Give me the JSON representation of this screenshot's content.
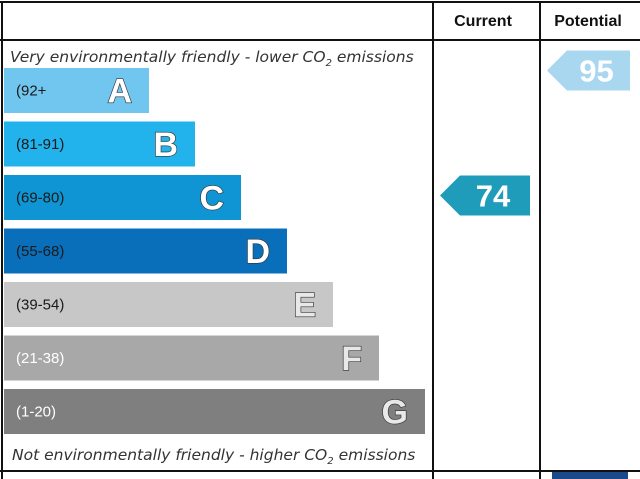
{
  "header": {
    "current_label": "Current",
    "potential_label": "Potential"
  },
  "notes": {
    "top_prefix": "Very environmentally friendly - lower CO",
    "top_sub": "2",
    "top_suffix": " emissions",
    "bottom_prefix": "Not environmentally friendly - higher CO",
    "bottom_sub": "2",
    "bottom_suffix": " emissions"
  },
  "chart_data": {
    "type": "bar",
    "categories": [
      "A",
      "B",
      "C",
      "D",
      "E",
      "F",
      "G"
    ],
    "ranges": [
      "(92+",
      "(81-91)",
      "(69-80)",
      "(55-68)",
      "(39-54)",
      "(21-38)",
      "(1-20)"
    ],
    "colors": [
      "#71c6ef",
      "#22b2ec",
      "#1095d4",
      "#0a6fbb",
      "#c7c7c7",
      "#a8a8a8",
      "#7f7f7f"
    ],
    "letter_colors": [
      "#ffffff",
      "#ffffff",
      "#ffffff",
      "#ffffff",
      "#e8e8e8",
      "#e8e8e8",
      "#e8e8e8"
    ],
    "range_colors": [
      "#1a1a1a",
      "#1a1a1a",
      "#1a1a1a",
      "#1a1a1a",
      "#1a1a1a",
      "#ffffff",
      "#ffffff"
    ],
    "current": {
      "value": 74,
      "band": "C",
      "color": "#1f9cb9"
    },
    "potential": {
      "value": 95,
      "band": "A",
      "color": "#a8d7ef"
    }
  }
}
